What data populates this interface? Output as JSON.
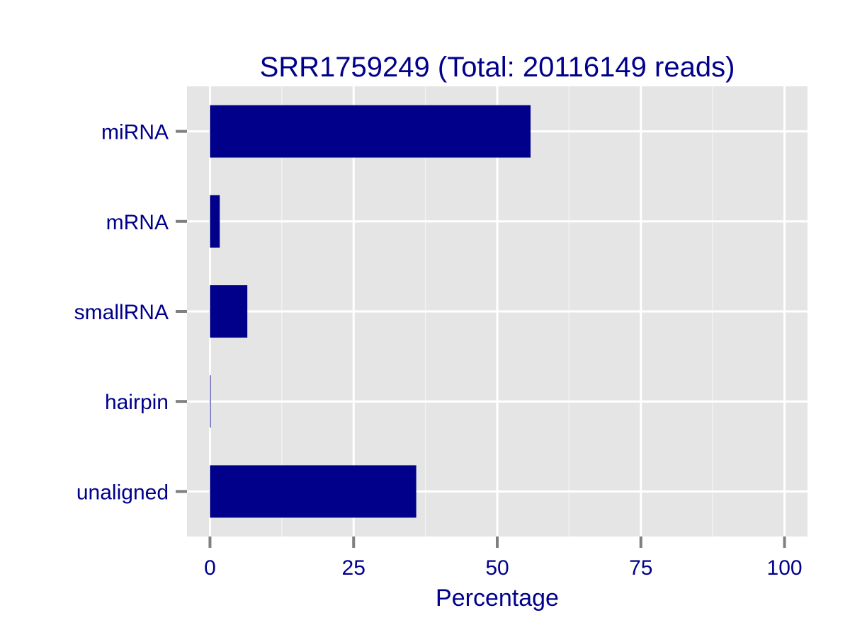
{
  "chart_data": {
    "type": "bar",
    "orientation": "horizontal",
    "title": "SRR1759249 (Total: 20116149 reads)",
    "xlabel": "Percentage",
    "ylabel": "",
    "categories": [
      "miRNA",
      "mRNA",
      "smallRNA",
      "hairpin",
      "unaligned"
    ],
    "values": [
      55.8,
      1.7,
      6.5,
      0.1,
      35.9
    ],
    "xlim": [
      -4,
      104
    ],
    "xticks": [
      0,
      25,
      50,
      75,
      100
    ],
    "xtick_labels": [
      "0",
      "25",
      "50",
      "75",
      "100"
    ],
    "grid": true,
    "legend": "none"
  },
  "colors": {
    "bar": "#00008b",
    "text": "#00008b",
    "panel": "#e5e5e5",
    "grid_major": "#ffffff",
    "grid_minor": "#f2f2f2",
    "tick": "#7f7f7f",
    "background": "#ffffff"
  }
}
